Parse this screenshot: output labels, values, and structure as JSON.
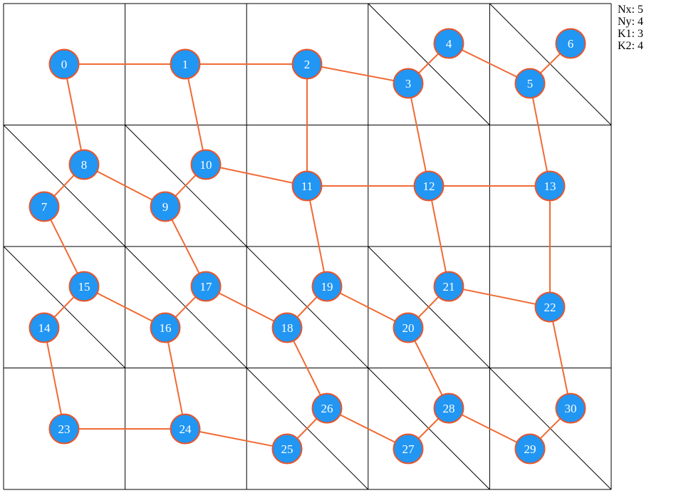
{
  "params": [
    {
      "label": "Nx",
      "value": "5"
    },
    {
      "label": "Ny",
      "value": "4"
    },
    {
      "label": "K1",
      "value": "3"
    },
    {
      "label": "K2",
      "value": "4"
    }
  ],
  "colors": {
    "node_fill": "#2196f3",
    "node_stroke": "#e8552b",
    "edge": "#f06a35",
    "grid": "#000000",
    "label": "#ffffff"
  },
  "diagonal_cells": [
    [
      0,
      3
    ],
    [
      0,
      4
    ],
    [
      1,
      0
    ],
    [
      1,
      1
    ],
    [
      2,
      0
    ],
    [
      2,
      1
    ],
    [
      2,
      2
    ],
    [
      2,
      3
    ],
    [
      3,
      2
    ],
    [
      3,
      3
    ],
    [
      3,
      4
    ]
  ],
  "nodes": [
    {
      "id": "0"
    },
    {
      "id": "1"
    },
    {
      "id": "2"
    },
    {
      "id": "3"
    },
    {
      "id": "4"
    },
    {
      "id": "5"
    },
    {
      "id": "6"
    },
    {
      "id": "7"
    },
    {
      "id": "8"
    },
    {
      "id": "9"
    },
    {
      "id": "10"
    },
    {
      "id": "11"
    },
    {
      "id": "12"
    },
    {
      "id": "13"
    },
    {
      "id": "14"
    },
    {
      "id": "15"
    },
    {
      "id": "16"
    },
    {
      "id": "17"
    },
    {
      "id": "18"
    },
    {
      "id": "19"
    },
    {
      "id": "20"
    },
    {
      "id": "21"
    },
    {
      "id": "22"
    },
    {
      "id": "23"
    },
    {
      "id": "24"
    },
    {
      "id": "25"
    },
    {
      "id": "26"
    },
    {
      "id": "27"
    },
    {
      "id": "28"
    },
    {
      "id": "29"
    },
    {
      "id": "30"
    }
  ],
  "edges": [
    [
      "0",
      "1"
    ],
    [
      "1",
      "2"
    ],
    [
      "2",
      "3"
    ],
    [
      "3",
      "4"
    ],
    [
      "4",
      "5"
    ],
    [
      "5",
      "6"
    ],
    [
      "0",
      "8"
    ],
    [
      "1",
      "10"
    ],
    [
      "2",
      "11"
    ],
    [
      "3",
      "12"
    ],
    [
      "5",
      "13"
    ],
    [
      "7",
      "8"
    ],
    [
      "8",
      "9"
    ],
    [
      "9",
      "10"
    ],
    [
      "10",
      "11"
    ],
    [
      "11",
      "12"
    ],
    [
      "12",
      "13"
    ],
    [
      "7",
      "15"
    ],
    [
      "9",
      "17"
    ],
    [
      "11",
      "19"
    ],
    [
      "12",
      "21"
    ],
    [
      "13",
      "22"
    ],
    [
      "14",
      "15"
    ],
    [
      "15",
      "16"
    ],
    [
      "16",
      "17"
    ],
    [
      "17",
      "18"
    ],
    [
      "18",
      "19"
    ],
    [
      "19",
      "20"
    ],
    [
      "20",
      "21"
    ],
    [
      "21",
      "22"
    ],
    [
      "14",
      "23"
    ],
    [
      "16",
      "24"
    ],
    [
      "18",
      "26"
    ],
    [
      "20",
      "28"
    ],
    [
      "22",
      "30"
    ],
    [
      "23",
      "24"
    ],
    [
      "24",
      "25"
    ],
    [
      "25",
      "26"
    ],
    [
      "26",
      "27"
    ],
    [
      "27",
      "28"
    ],
    [
      "28",
      "29"
    ],
    [
      "29",
      "30"
    ]
  ]
}
